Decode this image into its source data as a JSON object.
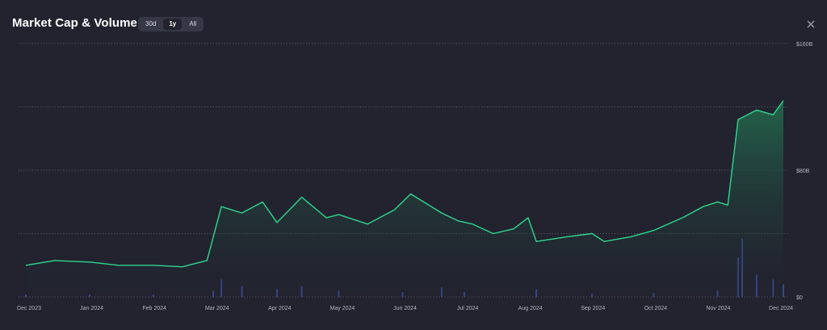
{
  "header": {
    "title": "Market Cap & Volume",
    "ranges": [
      "30d",
      "1y",
      "All"
    ],
    "active_range": "1y"
  },
  "colors": {
    "line": "#2fd68f",
    "area_top": "#23704f",
    "volume": "#3d4f9c",
    "grid": "#7a7c88"
  },
  "chart_data": {
    "type": "area",
    "title": "Market Cap & Volume",
    "x_ticks": [
      "Dec 2023",
      "Jan 2024",
      "Feb 2024",
      "Mar 2024",
      "Apr 2024",
      "May 2024",
      "Jun 2024",
      "Jul 2024",
      "Aug 2024",
      "Sep 2024",
      "Oct 2024",
      "Nov 2024",
      "Dec 2024"
    ],
    "y_ticks": [
      "$0",
      "$80B",
      "$160B"
    ],
    "ylim": [
      0,
      160
    ],
    "grid": "horizontal dotted",
    "series": [
      {
        "kind": "market_cap_line",
        "x": [
          "2023-12-01",
          "2023-12-15",
          "2024-01-01",
          "2024-01-15",
          "2024-02-01",
          "2024-02-15",
          "2024-02-27",
          "2024-03-05",
          "2024-03-15",
          "2024-03-25",
          "2024-04-01",
          "2024-04-13",
          "2024-04-25",
          "2024-05-01",
          "2024-05-15",
          "2024-05-28",
          "2024-06-05",
          "2024-06-20",
          "2024-06-28",
          "2024-07-05",
          "2024-07-15",
          "2024-07-25",
          "2024-08-01",
          "2024-08-05",
          "2024-08-20",
          "2024-09-01",
          "2024-09-07",
          "2024-09-20",
          "2024-10-01",
          "2024-10-15",
          "2024-10-25",
          "2024-11-01",
          "2024-11-06",
          "2024-11-11",
          "2024-11-20",
          "2024-11-28",
          "2024-12-03"
        ],
        "values": [
          20,
          23,
          22,
          20,
          20,
          19,
          23,
          57,
          53,
          60,
          47,
          63,
          50,
          52,
          46,
          55,
          65,
          53,
          48,
          46,
          40,
          43,
          50,
          35,
          38,
          40,
          35,
          38,
          42,
          50,
          57,
          60,
          58,
          112,
          118,
          115,
          124
        ]
      },
      {
        "kind": "volume_bars",
        "x": [
          "2023-12-01",
          "2024-01-01",
          "2024-02-01",
          "2024-03-01",
          "2024-03-05",
          "2024-03-15",
          "2024-04-01",
          "2024-04-13",
          "2024-05-01",
          "2024-06-01",
          "2024-06-20",
          "2024-07-01",
          "2024-08-05",
          "2024-09-01",
          "2024-10-01",
          "2024-11-01",
          "2024-11-11",
          "2024-11-13",
          "2024-11-20",
          "2024-11-28",
          "2024-12-03"
        ],
        "values": [
          1.5,
          1.5,
          1.5,
          4,
          11,
          7,
          5,
          7,
          4,
          3,
          6,
          3,
          5,
          2,
          2.5,
          4,
          25,
          37,
          14,
          11,
          8
        ]
      }
    ]
  }
}
